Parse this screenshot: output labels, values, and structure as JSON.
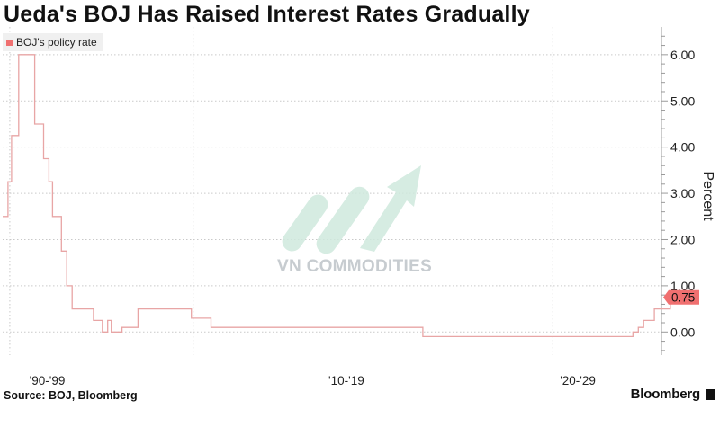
{
  "title": "Ueda's BOJ Has Raised Interest Rates Gradually",
  "source": "Source: BOJ, Bloomberg",
  "brand": "Bloomberg",
  "watermark": "VN COMMODITIES",
  "last_value_label": "0.75",
  "colors": {
    "series": "#e8a5a5",
    "last_tag": "#f07070",
    "watermark_text": "#c7ccd0",
    "watermark_mark": "#cfe9dd"
  },
  "chart_data": {
    "type": "line",
    "title": "Ueda's BOJ Has Raised Interest Rates Gradually",
    "ylabel": "Percent",
    "ylim": [
      -0.5,
      6.6
    ],
    "yticks": [
      0,
      1,
      2,
      3,
      4,
      5,
      6
    ],
    "ytick_labels": [
      "0.00",
      "1.00",
      "2.00",
      "3.00",
      "4.00",
      "5.00",
      "6.00"
    ],
    "xlim": [
      1989,
      2026
    ],
    "xtick_labels": [
      {
        "x": 1990.5,
        "label": "'90-'99"
      },
      {
        "x": 2007.3,
        "label": "'10-'19"
      },
      {
        "x": 2020.3,
        "label": "'20-'29"
      }
    ],
    "xgrid": [
      1989.4,
      1999.7,
      2009.8,
      2019.9
    ],
    "ygrid": true,
    "legend": {
      "position": "top-left",
      "entries": [
        "BOJ's policy rate"
      ]
    },
    "series": [
      {
        "name": "BOJ's policy rate",
        "step": true,
        "points": [
          [
            1989.0,
            2.5
          ],
          [
            1989.3,
            3.25
          ],
          [
            1989.5,
            4.25
          ],
          [
            1989.9,
            6.0
          ],
          [
            1990.8,
            4.5
          ],
          [
            1991.3,
            3.75
          ],
          [
            1991.6,
            3.25
          ],
          [
            1991.8,
            2.5
          ],
          [
            1992.3,
            1.75
          ],
          [
            1992.6,
            1.0
          ],
          [
            1992.9,
            0.5
          ],
          [
            1994.1,
            0.25
          ],
          [
            1994.6,
            0.0
          ],
          [
            1994.9,
            0.25
          ],
          [
            1995.1,
            0.0
          ],
          [
            1995.7,
            0.1
          ],
          [
            1996.6,
            0.5
          ],
          [
            1999.6,
            0.3
          ],
          [
            2000.7,
            0.1
          ],
          [
            2002.4,
            0.1
          ],
          [
            2012.0,
            0.1
          ],
          [
            2012.6,
            -0.1
          ],
          [
            2024.2,
            -0.1
          ],
          [
            2024.4,
            0.0
          ],
          [
            2024.7,
            0.1
          ],
          [
            2025.0,
            0.25
          ],
          [
            2025.6,
            0.5
          ],
          [
            2026.0,
            0.5
          ],
          [
            2026.5,
            0.75
          ],
          [
            2026.85,
            0.75
          ]
        ]
      }
    ],
    "last_value": 0.75
  }
}
